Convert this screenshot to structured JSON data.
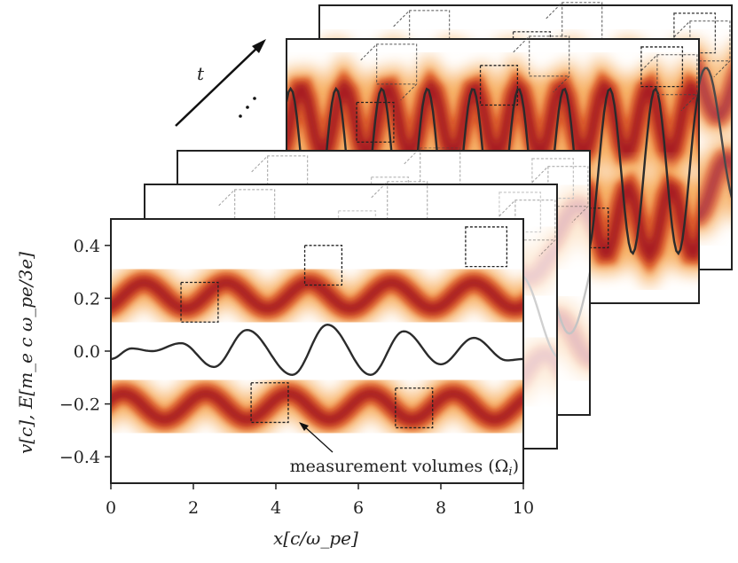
{
  "chart_data": {
    "type": "line",
    "xlabel": "x[c/ω_pe]",
    "ylabel": "v[c], E[m_e c ω_pe/3e]",
    "xlim": [
      0,
      10
    ],
    "ylim": [
      -0.5,
      0.5
    ],
    "xticks": [
      "0",
      "2",
      "4",
      "6",
      "8",
      "10"
    ],
    "yticks": [
      "0.4",
      "0.2",
      "0.0",
      "−0.2",
      "−0.4"
    ],
    "xtick_values": [
      0,
      2,
      4,
      6,
      8,
      10
    ],
    "ytick_values": [
      0.4,
      0.2,
      0.0,
      -0.2,
      -0.4
    ],
    "grid": false,
    "electric_field": {
      "x": [
        0,
        0.5,
        1.0,
        1.7,
        2.5,
        3.3,
        4.4,
        5.25,
        6.3,
        7.1,
        8.0,
        8.8,
        9.6,
        10
      ],
      "y": [
        -0.03,
        0.01,
        0.0,
        0.03,
        -0.06,
        0.08,
        -0.09,
        0.1,
        -0.09,
        0.075,
        -0.05,
        0.05,
        -0.035,
        -0.03
      ]
    },
    "phase_space_bands": [
      {
        "center": 0.21,
        "amplitude": 0.05
      },
      {
        "center": -0.21,
        "amplitude": 0.05
      }
    ],
    "measurement_volumes": [
      {
        "x": [
          1.7,
          2.6
        ],
        "v": [
          0.11,
          0.26
        ]
      },
      {
        "x": [
          4.7,
          5.6
        ],
        "v": [
          0.25,
          0.4
        ]
      },
      {
        "x": [
          8.6,
          9.6
        ],
        "v": [
          0.32,
          0.47
        ]
      },
      {
        "x": [
          3.4,
          4.3
        ],
        "v": [
          -0.27,
          -0.12
        ]
      },
      {
        "x": [
          6.9,
          7.8
        ],
        "v": [
          -0.29,
          -0.14
        ]
      }
    ],
    "colormap": [
      "#ffffff",
      "#fdd49e",
      "#f08a3c",
      "#c0392b",
      "#8b1a1a"
    ],
    "line_color": "#2b2b2b"
  },
  "annotation": "measurement volumes (Ω_i)",
  "annotation_main": "measurement volumes (Ω",
  "annotation_sub": "i",
  "annotation_close": ")",
  "time_label": "t",
  "ellipsis": "⋰"
}
